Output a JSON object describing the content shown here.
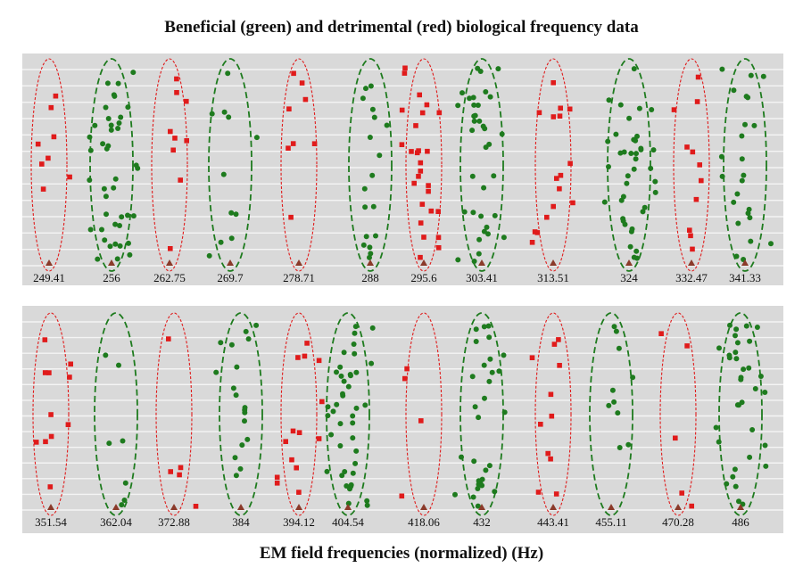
{
  "title": "Beneficial (green) and detrimental (red)  biological frequency data",
  "xlabel": "EM field frequencies (normalized) (Hz)",
  "colors": {
    "beneficial": "#1e7b1e",
    "detrimental": "#e01b1b",
    "panel_bg": "#d9d9d9",
    "grid": "#f4f4f4",
    "marker": "#8b3a2a"
  },
  "chart_data": {
    "type": "scatter",
    "title": "Beneficial (green) and detrimental (red)  biological frequency data",
    "xlabel": "EM field frequencies (normalized) (Hz)",
    "ylabel": "",
    "grid": true,
    "legend": "none",
    "panels": [
      {
        "name": "top",
        "frequencies": [
          {
            "label": "249.41",
            "type": "detrimental",
            "count": 8
          },
          {
            "label": "256",
            "type": "beneficial",
            "count": 42
          },
          {
            "label": "262.75",
            "type": "detrimental",
            "count": 9
          },
          {
            "label": "269.7",
            "type": "beneficial",
            "count": 11
          },
          {
            "label": "278.71",
            "type": "detrimental",
            "count": 8
          },
          {
            "label": "288",
            "type": "beneficial",
            "count": 18
          },
          {
            "label": "295.6",
            "type": "detrimental",
            "count": 27
          },
          {
            "label": "303.41",
            "type": "beneficial",
            "count": 36
          },
          {
            "label": "313.51",
            "type": "detrimental",
            "count": 16
          },
          {
            "label": "324",
            "type": "beneficial",
            "count": 40
          },
          {
            "label": "332.47",
            "type": "detrimental",
            "count": 11
          },
          {
            "label": "341.33",
            "type": "beneficial",
            "count": 24
          }
        ]
      },
      {
        "name": "bottom",
        "frequencies": [
          {
            "label": "351.54",
            "type": "detrimental",
            "count": 11
          },
          {
            "label": "362.04",
            "type": "beneficial",
            "count": 7
          },
          {
            "label": "372.88",
            "type": "detrimental",
            "count": 5
          },
          {
            "label": "384",
            "type": "beneficial",
            "count": 18
          },
          {
            "label": "394.12",
            "type": "detrimental",
            "count": 14
          },
          {
            "label": "404.54",
            "type": "beneficial",
            "count": 42
          },
          {
            "label": "418.06",
            "type": "detrimental",
            "count": 4
          },
          {
            "label": "432",
            "type": "beneficial",
            "count": 30
          },
          {
            "label": "443.41",
            "type": "detrimental",
            "count": 11
          },
          {
            "label": "455.11",
            "type": "beneficial",
            "count": 10
          },
          {
            "label": "470.28",
            "type": "detrimental",
            "count": 5
          },
          {
            "label": "486",
            "type": "beneficial",
            "count": 34
          }
        ]
      }
    ]
  }
}
